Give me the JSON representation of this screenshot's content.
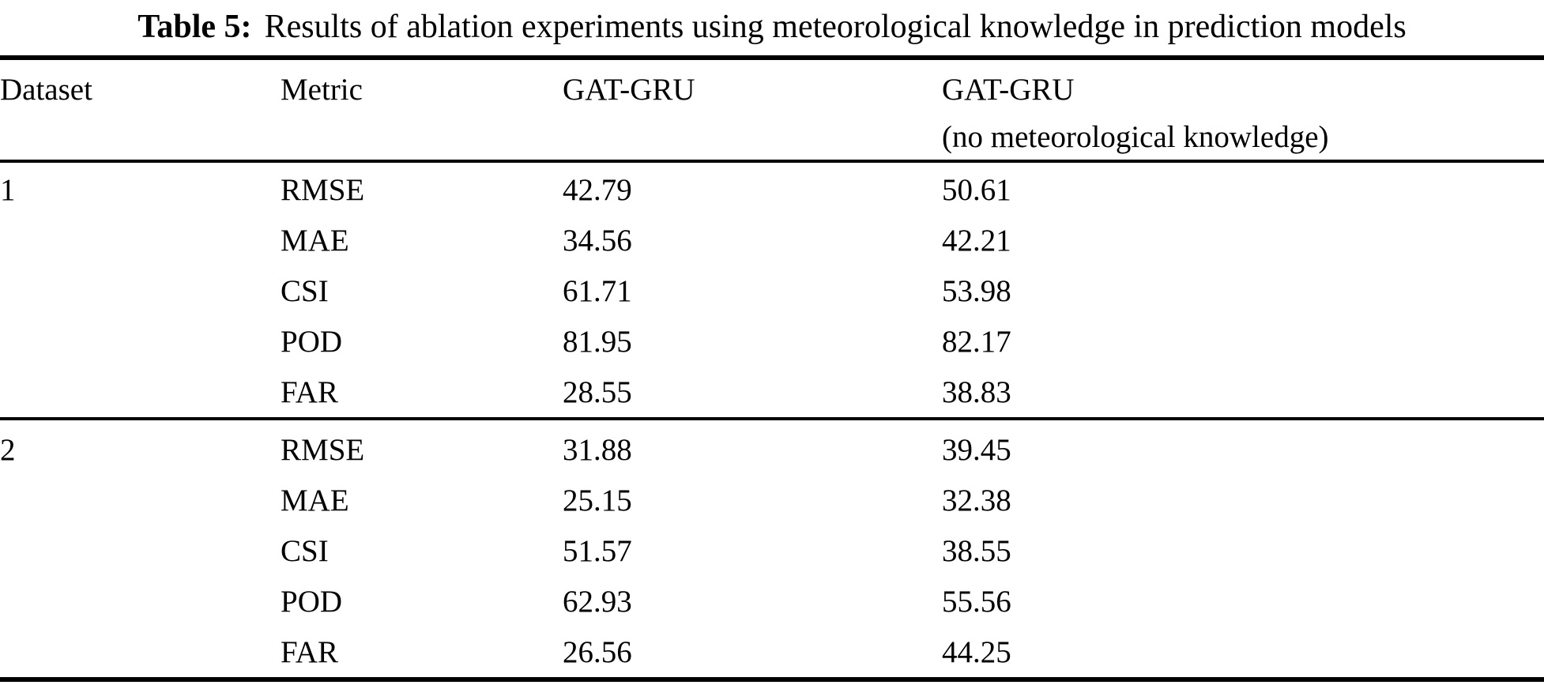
{
  "colors": {
    "background": "#ffffff",
    "text": "#000000",
    "rule": "#000000"
  },
  "caption": {
    "label": "Table 5:",
    "text": "Results of ablation experiments using meteorological knowledge in prediction models"
  },
  "header": {
    "dataset": "Dataset",
    "metric": "Metric",
    "gat_gru": "GAT-GRU",
    "gat_gru_ablated_line1": "GAT-GRU",
    "gat_gru_ablated_line2": "(no meteorological knowledge)"
  },
  "table": {
    "groups": [
      {
        "dataset": "1",
        "rows": [
          {
            "metric": "RMSE",
            "gat_gru": "42.79",
            "gat_gru_no_met": "50.61"
          },
          {
            "metric": "MAE",
            "gat_gru": "34.56",
            "gat_gru_no_met": "42.21"
          },
          {
            "metric": "CSI",
            "gat_gru": "61.71",
            "gat_gru_no_met": "53.98"
          },
          {
            "metric": "POD",
            "gat_gru": "81.95",
            "gat_gru_no_met": "82.17"
          },
          {
            "metric": "FAR",
            "gat_gru": "28.55",
            "gat_gru_no_met": "38.83"
          }
        ]
      },
      {
        "dataset": "2",
        "rows": [
          {
            "metric": "RMSE",
            "gat_gru": "31.88",
            "gat_gru_no_met": "39.45"
          },
          {
            "metric": "MAE",
            "gat_gru": "25.15",
            "gat_gru_no_met": "32.38"
          },
          {
            "metric": "CSI",
            "gat_gru": "51.57",
            "gat_gru_no_met": "38.55"
          },
          {
            "metric": "POD",
            "gat_gru": "62.93",
            "gat_gru_no_met": "55.56"
          },
          {
            "metric": "FAR",
            "gat_gru": "26.56",
            "gat_gru_no_met": "44.25"
          }
        ]
      }
    ]
  }
}
